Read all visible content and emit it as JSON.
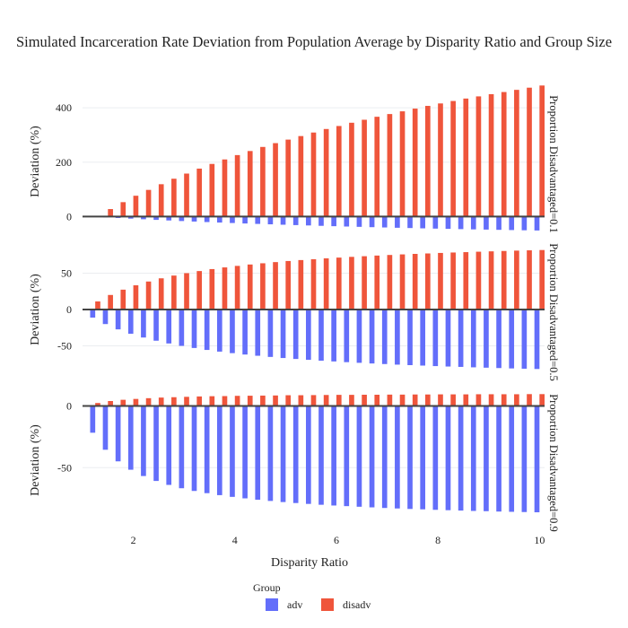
{
  "chart_data": {
    "type": "bar",
    "title": "Simulated Incarceration Rate Deviation from Population Average by Disparity Ratio and Group Size",
    "xlabel": "Disparity Ratio",
    "ylabel": "Deviation (%)",
    "x": [
      1.25,
      1.5,
      1.75,
      2,
      2.25,
      2.5,
      2.75,
      3,
      3.25,
      3.5,
      3.75,
      4,
      4.25,
      4.5,
      4.75,
      5,
      5.25,
      5.5,
      5.75,
      6,
      6.25,
      6.5,
      6.75,
      7,
      7.25,
      7.5,
      7.75,
      8,
      8.25,
      8.5,
      8.75,
      9,
      9.25,
      9.5,
      9.75,
      10
    ],
    "xticks": [
      2,
      4,
      6,
      8,
      10
    ],
    "xlim": [
      1,
      10.1
    ],
    "legend": {
      "title": "Group",
      "position": "bottom-center"
    },
    "colors": {
      "adv": "#636efa",
      "disadv": "#ef553b"
    },
    "facets": [
      {
        "label": "Proportion Disadvantaged=0.1",
        "ylim": [
          -45,
          450
        ],
        "yticks": [
          0,
          200,
          400
        ],
        "series": [
          {
            "name": "adv",
            "values": [
              0,
              -2.7,
              -5.3,
              -7.7,
              -10,
              -12.3,
              -14.4,
              -16.5,
              -18.4,
              -20.3,
              -22.1,
              -23.8,
              -25.5,
              -27.1,
              -28.6,
              -30.1,
              -31.5,
              -32.8,
              -34.2,
              -35.5,
              -36.7,
              -37.9,
              -39.1,
              -40.2,
              -41.3,
              -42.3,
              -43.4,
              -44.4,
              -45.3,
              -46.3,
              -47.2,
              -48,
              -48.9,
              -49.7,
              -50.5,
              -51.3
            ]
          },
          {
            "name": "disadv",
            "values": [
              0,
              27.5,
              52.9,
              76.5,
              98,
              118.9,
              139.1,
              158,
              176.3,
              193.5,
              210,
              226,
              241,
              256,
              270,
              283,
              296,
              309,
              322,
              333,
              345,
              356,
              367,
              377,
              387,
              397,
              407,
              416,
              425,
              434,
              442,
              450,
              458,
              466,
              474,
              482
            ]
          }
        ]
      },
      {
        "label": "Proportion Disadvantaged=0.5",
        "ylim": [
          -95,
          95
        ],
        "yticks": [
          -50,
          0,
          50
        ],
        "series": [
          {
            "name": "adv",
            "values": [
              -11.1,
              -20,
              -27.3,
              -33.3,
              -38.5,
              -42.9,
              -46.7,
              -50,
              -52.9,
              -55.6,
              -57.9,
              -60,
              -61.9,
              -63.6,
              -65.2,
              -66.7,
              -68,
              -69.2,
              -70.4,
              -71.4,
              -72.4,
              -73.3,
              -74.2,
              -75,
              -75.8,
              -76.5,
              -77.1,
              -77.8,
              -78.4,
              -78.9,
              -79.5,
              -80,
              -80.5,
              -81,
              -81.4,
              -81.8
            ]
          },
          {
            "name": "disadv",
            "values": [
              11.1,
              20,
              27.3,
              33.3,
              38.5,
              42.9,
              46.7,
              50,
              52.9,
              55.6,
              57.9,
              60,
              61.9,
              63.6,
              65.2,
              66.7,
              68,
              69.2,
              70.4,
              71.4,
              72.4,
              73.3,
              74.2,
              75,
              75.8,
              76.5,
              77.1,
              77.8,
              78.4,
              78.9,
              79.5,
              80,
              80.5,
              81,
              81.4,
              81.8
            ]
          }
        ]
      },
      {
        "label": "Proportion Disadvantaged=0.9",
        "ylim": [
          -100,
          12
        ],
        "yticks": [
          -50,
          0
        ],
        "series": [
          {
            "name": "adv",
            "values": [
              -21.7,
              -35.5,
              -44.9,
              -51.7,
              -56.8,
              -60.8,
              -64,
              -66.7,
              -68.9,
              -70.7,
              -72.3,
              -73.7,
              -74.9,
              -76,
              -77,
              -77.9,
              -78.7,
              -79.4,
              -80.1,
              -80.7,
              -81.2,
              -81.7,
              -82.2,
              -82.7,
              -83.1,
              -83.5,
              -83.8,
              -84.2,
              -84.5,
              -84.8,
              -85.1,
              -85.3,
              -85.6,
              -85.8,
              -86,
              -86.2
            ]
          },
          {
            "name": "disadv",
            "values": [
              2.4,
              4,
              5,
              5.7,
              6.3,
              6.8,
              7.1,
              7.4,
              7.7,
              7.9,
              8,
              8.2,
              8.3,
              8.4,
              8.5,
              8.7,
              8.7,
              8.8,
              8.9,
              9,
              9,
              9.1,
              9.1,
              9.2,
              9.2,
              9.3,
              9.3,
              9.4,
              9.4,
              9.4,
              9.5,
              9.5,
              9.5,
              9.5,
              9.6,
              9.6
            ]
          }
        ]
      }
    ]
  }
}
